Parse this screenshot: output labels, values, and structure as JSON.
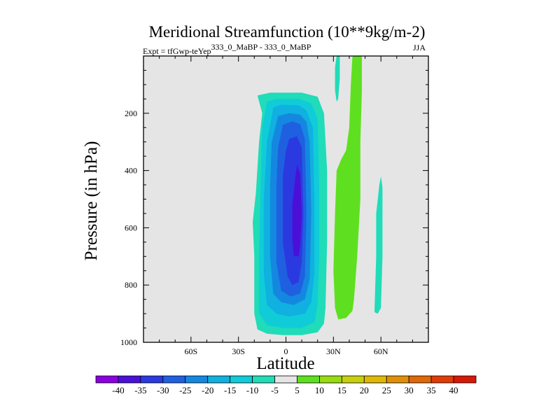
{
  "chart_data": {
    "type": "contour",
    "title": "Meridional Streamfunction (10**9kg/m-2)",
    "subtitle_left": {
      "prefix": "Expt = tfGwp-teYep",
      "superscript": "333_0_MaBP - 333_0_MaBP"
    },
    "subtitle_right": "JJA",
    "xlabel": "Latitude",
    "ylabel": "Pressure (in hPa)",
    "x_range": [
      -90,
      90
    ],
    "y_range": [
      1000,
      0
    ],
    "x_ticks": [
      {
        "value": -60,
        "label": "60S"
      },
      {
        "value": -30,
        "label": "30S"
      },
      {
        "value": 0,
        "label": "0"
      },
      {
        "value": 30,
        "label": "30N"
      },
      {
        "value": 60,
        "label": "60N"
      }
    ],
    "y_ticks": [
      {
        "value": 200,
        "label": "200"
      },
      {
        "value": 400,
        "label": "400"
      },
      {
        "value": 600,
        "label": "600"
      },
      {
        "value": 800,
        "label": "800"
      },
      {
        "value": 1000,
        "label": "1000"
      }
    ],
    "background_color": "#e5e5e5",
    "colorbar": {
      "labels": [
        "-40",
        "-35",
        "-30",
        "-25",
        "-20",
        "-15",
        "-10",
        "-5",
        "5",
        "10",
        "15",
        "20",
        "25",
        "30",
        "35",
        "40"
      ],
      "colors": [
        "#8a00e0",
        "#4a10d8",
        "#2a3ae0",
        "#1f60e0",
        "#1488e0",
        "#10b0e0",
        "#10ccd8",
        "#20dcb8",
        "#e5e5e5",
        "#5ee020",
        "#98dc10",
        "#c8d00c",
        "#e0b808",
        "#e09008",
        "#e06808",
        "#e03c08",
        "#d81808"
      ]
    },
    "regions": [
      {
        "name": "contour-region-minus5",
        "level": "-5",
        "color": "#20dcb8",
        "points": [
          [
            -18,
            138
          ],
          [
            -10,
            128
          ],
          [
            10,
            128
          ],
          [
            20,
            142
          ],
          [
            24,
            200
          ],
          [
            26,
            400
          ],
          [
            26,
            650
          ],
          [
            25,
            880
          ],
          [
            24,
            935
          ],
          [
            20,
            965
          ],
          [
            10,
            975
          ],
          [
            -2,
            975
          ],
          [
            -12,
            970
          ],
          [
            -18,
            955
          ],
          [
            -20,
            900
          ],
          [
            -20,
            700
          ],
          [
            -21,
            580
          ],
          [
            -19,
            480
          ],
          [
            -17,
            300
          ],
          [
            -15,
            200
          ]
        ]
      },
      {
        "name": "contour-region-minus10",
        "level": "-10",
        "color": "#10ccd8",
        "points": [
          [
            -12,
            160
          ],
          [
            -6,
            150
          ],
          [
            8,
            150
          ],
          [
            16,
            165
          ],
          [
            20,
            220
          ],
          [
            21,
            450
          ],
          [
            21,
            700
          ],
          [
            20,
            870
          ],
          [
            18,
            930
          ],
          [
            10,
            950
          ],
          [
            -2,
            950
          ],
          [
            -12,
            940
          ],
          [
            -17,
            900
          ],
          [
            -17,
            700
          ],
          [
            -16,
            450
          ],
          [
            -15,
            250
          ]
        ]
      },
      {
        "name": "contour-region-minus15",
        "level": "-15",
        "color": "#10b0e0",
        "points": [
          [
            -8,
            180
          ],
          [
            -3,
            170
          ],
          [
            8,
            172
          ],
          [
            13,
            190
          ],
          [
            17,
            250
          ],
          [
            18,
            500
          ],
          [
            18,
            760
          ],
          [
            16,
            860
          ],
          [
            12,
            900
          ],
          [
            2,
            910
          ],
          [
            -6,
            900
          ],
          [
            -12,
            870
          ],
          [
            -14,
            760
          ],
          [
            -14,
            500
          ],
          [
            -12,
            300
          ]
        ]
      },
      {
        "name": "contour-region-minus20",
        "level": "-20",
        "color": "#1488e0",
        "points": [
          [
            -5,
            210
          ],
          [
            2,
            200
          ],
          [
            9,
            205
          ],
          [
            13,
            230
          ],
          [
            15,
            300
          ],
          [
            16,
            550
          ],
          [
            15,
            780
          ],
          [
            12,
            850
          ],
          [
            5,
            870
          ],
          [
            -3,
            860
          ],
          [
            -8,
            830
          ],
          [
            -10,
            700
          ],
          [
            -10,
            450
          ],
          [
            -9,
            300
          ]
        ]
      },
      {
        "name": "contour-region-minus25",
        "level": "-25",
        "color": "#1f60e0",
        "points": [
          [
            -2,
            240
          ],
          [
            4,
            228
          ],
          [
            9,
            238
          ],
          [
            12,
            290
          ],
          [
            13,
            550
          ],
          [
            12,
            770
          ],
          [
            9,
            830
          ],
          [
            3,
            840
          ],
          [
            -3,
            820
          ],
          [
            -6,
            720
          ],
          [
            -6,
            450
          ],
          [
            -5,
            320
          ]
        ]
      },
      {
        "name": "contour-region-minus30",
        "level": "-30",
        "color": "#2a3ae0",
        "points": [
          [
            2,
            290
          ],
          [
            7,
            280
          ],
          [
            10,
            320
          ],
          [
            11,
            550
          ],
          [
            10,
            720
          ],
          [
            8,
            790
          ],
          [
            4,
            800
          ],
          [
            1,
            770
          ],
          [
            -2,
            650
          ],
          [
            -2,
            420
          ],
          [
            0,
            330
          ]
        ]
      },
      {
        "name": "contour-region-minus35",
        "level": "-35",
        "color": "#4a10d8",
        "points": [
          [
            7,
            380
          ],
          [
            9,
            410
          ],
          [
            10,
            550
          ],
          [
            9,
            660
          ],
          [
            8,
            700
          ],
          [
            5,
            700
          ],
          [
            4,
            640
          ],
          [
            4,
            520
          ],
          [
            6,
            420
          ]
        ]
      },
      {
        "name": "contour-region-pos5-north",
        "level": "5",
        "color": "#5ee020",
        "points": [
          [
            42,
            0
          ],
          [
            48,
            0
          ],
          [
            48,
            120
          ],
          [
            47,
            300
          ],
          [
            47,
            500
          ],
          [
            45,
            700
          ],
          [
            43,
            850
          ],
          [
            42,
            890
          ],
          [
            38,
            915
          ],
          [
            33,
            920
          ],
          [
            31,
            880
          ],
          [
            30,
            750
          ],
          [
            31,
            550
          ],
          [
            32,
            400
          ],
          [
            35,
            360
          ],
          [
            38,
            330
          ],
          [
            40,
            250
          ],
          [
            41,
            100
          ]
        ]
      },
      {
        "name": "contour-region-minus5-north-left",
        "level": "-5",
        "color": "#20dcb8",
        "points": [
          [
            32,
            0
          ],
          [
            34,
            0
          ],
          [
            34,
            80
          ],
          [
            33,
            150
          ],
          [
            32,
            160
          ],
          [
            31,
            120
          ],
          [
            31,
            40
          ]
        ]
      },
      {
        "name": "contour-region-minus5-north-right",
        "level": "-5",
        "color": "#20dcb8",
        "points": [
          [
            59,
            450
          ],
          [
            60,
            420
          ],
          [
            61,
            460
          ],
          [
            61,
            700
          ],
          [
            60,
            880
          ],
          [
            58,
            900
          ],
          [
            56,
            895
          ],
          [
            56,
            880
          ],
          [
            57,
            700
          ],
          [
            57,
            550
          ]
        ]
      }
    ]
  }
}
